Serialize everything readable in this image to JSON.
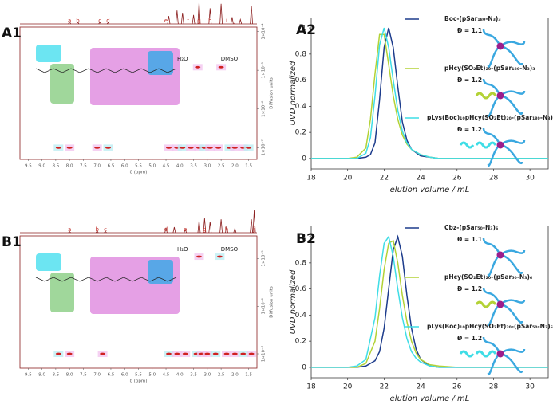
{
  "chart_data": [
    {
      "type": "dosy",
      "panel": "A1",
      "xlabel": "δ (ppm)",
      "ylabel": "Diffusion units",
      "xlim": [
        9.8,
        1.2
      ],
      "xticks": [
        9.5,
        {
          "value": 9,
          "label": "9.0"
        },
        8.5,
        {
          "value": 8,
          "label": "8.0"
        },
        7.5,
        {
          "value": 7,
          "label": "7.0"
        },
        6.5,
        {
          "value": 6,
          "label": "6.0"
        },
        5.5,
        {
          "value": 5,
          "label": "5.0"
        },
        4.5,
        {
          "value": 4,
          "label": "4.0"
        },
        3.5,
        {
          "value": 3,
          "label": "3.0"
        },
        2.5,
        {
          "value": 2,
          "label": "2.0"
        },
        1.5
      ],
      "log_y": true,
      "ylim": [
        5e-08,
        0.00013
      ],
      "yticks": [
        {
          "value": 0.0001,
          "label": "1×10⁻⁴"
        },
        {
          "value": 1e-05,
          "label": "1×10⁻⁵"
        },
        {
          "value": 1e-06,
          "label": "1×10⁻⁶"
        },
        {
          "value": 1e-07,
          "label": "1×10⁻⁷"
        }
      ],
      "peak_labels": [
        {
          "label": "a",
          "x": 8.0
        },
        {
          "label": "b",
          "x": 7.7
        },
        {
          "label": "c",
          "x": 6.9
        },
        {
          "label": "d",
          "x": 6.6
        },
        {
          "label": "e",
          "x": 4.5
        },
        {
          "label": "f",
          "x": 3.7
        },
        {
          "label": "g",
          "x": 3.3
        },
        {
          "label": "h",
          "x": 2.9
        },
        {
          "label": "i",
          "x": 2.3
        },
        {
          "label": "j",
          "x": 2.0
        }
      ],
      "spectrum": {
        "x": [
          8.0,
          7.7,
          6.9,
          6.6,
          4.4,
          4.1,
          3.9,
          3.5,
          3.3,
          2.9,
          2.5,
          2.1,
          1.8,
          1.4
        ],
        "y": [
          0.1,
          0.08,
          0.08,
          0.06,
          0.35,
          0.6,
          0.5,
          0.4,
          1.0,
          0.7,
          0.9,
          0.3,
          0.2,
          0.8
        ]
      },
      "spots": {
        "x": [
          8.4,
          8.0,
          7.0,
          6.6,
          4.4,
          4.1,
          3.9,
          3.6,
          3.3,
          3.1,
          2.9,
          2.6,
          2.2,
          2.0,
          1.7,
          1.5,
          3.35,
          2.5
        ],
        "y": [
          1e-07,
          1e-07,
          1e-07,
          1e-07,
          1e-07,
          1e-07,
          1e-07,
          1e-07,
          1e-07,
          1e-07,
          1e-07,
          1e-07,
          1e-07,
          1e-07,
          1e-07,
          1e-07,
          1.2e-05,
          1.2e-05
        ]
      },
      "annotations": [
        {
          "text": "H₂O",
          "x": 3.9,
          "y": 1.4e-05
        },
        {
          "text": "DMSO",
          "x": 2.2,
          "y": 1.4e-05
        }
      ]
    },
    {
      "type": "line",
      "panel": "A2",
      "xlabel": "elution volume / mL",
      "ylabel": "UVD normalized",
      "xlim": [
        18,
        31
      ],
      "xticks": [
        18,
        20,
        22,
        24,
        26,
        28,
        30
      ],
      "ylim": [
        -0.08,
        1.08
      ],
      "yticks": [
        0,
        0.2,
        0.4,
        0.6,
        0.8,
        1
      ],
      "x": [
        18,
        20,
        20.5,
        21,
        21.25,
        21.5,
        21.75,
        22,
        22.25,
        22.5,
        22.75,
        23,
        23.25,
        23.5,
        24,
        24.5,
        25,
        26,
        31
      ],
      "series": [
        {
          "name": "Boc-(pSar₁₈₀-N₃)₃",
          "dispersity_label": "Đ = 1.1",
          "color": "#1d3c8c",
          "values": [
            0,
            0,
            0,
            0.01,
            0.03,
            0.12,
            0.45,
            0.85,
            1.0,
            0.85,
            0.55,
            0.28,
            0.14,
            0.07,
            0.02,
            0.01,
            0,
            0,
            0
          ]
        },
        {
          "name": "pHcy(SO₂Et)₂₀-(pSar₁₈₀-N₃)₃",
          "dispersity_label": "Đ = 1.2",
          "color": "#b3d236",
          "values": [
            0,
            0,
            0.01,
            0.08,
            0.3,
            0.65,
            0.95,
            0.95,
            0.72,
            0.48,
            0.3,
            0.18,
            0.11,
            0.07,
            0.03,
            0.01,
            0,
            0,
            0
          ]
        },
        {
          "name": "pLys(Boc)₁₀pHcy(SO₂Et)₂₀-(pSar₁₈₀-N₃)₃",
          "dispersity_label": "Đ = 1.2",
          "color": "#3fdde6",
          "values": [
            0,
            0,
            0,
            0.04,
            0.16,
            0.48,
            0.87,
            1.0,
            0.85,
            0.6,
            0.37,
            0.21,
            0.12,
            0.07,
            0.03,
            0.01,
            0,
            0,
            0
          ]
        }
      ]
    },
    {
      "type": "dosy",
      "panel": "B1",
      "xlabel": "δ (ppm)",
      "ylabel": "Diffusion units",
      "xlim": [
        9.8,
        1.2
      ],
      "xticks": [
        9.5,
        {
          "value": 9,
          "label": "9.0"
        },
        8.5,
        {
          "value": 8,
          "label": "8.0"
        },
        7.5,
        {
          "value": 7,
          "label": "7.0"
        },
        6.5,
        {
          "value": 6,
          "label": "6.0"
        },
        5.5,
        {
          "value": 5,
          "label": "5.0"
        },
        4.5,
        {
          "value": 4,
          "label": "4.0"
        },
        3.5,
        {
          "value": 3,
          "label": "3.0"
        },
        2.5,
        {
          "value": 2,
          "label": "2.0"
        },
        1.5
      ],
      "log_y": true,
      "ylim": [
        5e-08,
        3e-05
      ],
      "yticks": [
        {
          "value": 1e-05,
          "label": "1×10⁻⁵"
        },
        {
          "value": 1e-06,
          "label": "1×10⁻⁶"
        },
        {
          "value": 1e-07,
          "label": "1×10⁻⁷"
        }
      ],
      "peak_labels": [
        {
          "label": "a",
          "x": 8.0
        },
        {
          "label": "b",
          "x": 7.0
        },
        {
          "label": "c",
          "x": 6.7
        },
        {
          "label": "d",
          "x": 4.5
        },
        {
          "label": "e",
          "x": 3.8
        },
        {
          "label": "f",
          "x": 3.3
        },
        {
          "label": "g",
          "x": 3.1
        },
        {
          "label": "h",
          "x": 2.3
        },
        {
          "label": "i",
          "x": 2.0
        },
        {
          "label": "j",
          "x": 1.3
        }
      ],
      "spectrum": {
        "x": [
          8.0,
          7.0,
          6.7,
          4.5,
          4.2,
          3.8,
          3.3,
          3.1,
          2.9,
          2.5,
          2.3,
          2.0,
          1.4,
          1.3
        ],
        "y": [
          0.05,
          0.08,
          0.06,
          0.2,
          0.25,
          0.15,
          0.55,
          0.65,
          0.5,
          0.6,
          0.3,
          0.2,
          0.6,
          1.0
        ]
      },
      "spots": {
        "x": [
          8.4,
          8.0,
          6.8,
          4.4,
          4.1,
          3.8,
          3.4,
          3.2,
          3.0,
          2.7,
          2.3,
          2.0,
          1.7,
          1.4,
          3.3,
          2.55
        ],
        "y": [
          1e-07,
          1e-07,
          1e-07,
          1e-07,
          1e-07,
          1e-07,
          1e-07,
          1e-07,
          1e-07,
          1e-07,
          1e-07,
          1e-07,
          1e-07,
          1e-07,
          1.1e-05,
          1.1e-05
        ]
      },
      "annotations": [
        {
          "text": "H₂O",
          "x": 3.9,
          "y": 1.2e-05
        },
        {
          "text": "DMSO",
          "x": 2.2,
          "y": 1.2e-05
        }
      ]
    },
    {
      "type": "line",
      "panel": "B2",
      "xlabel": "elution volume / mL",
      "ylabel": "UVD normalized",
      "xlim": [
        18,
        31
      ],
      "xticks": [
        18,
        20,
        22,
        24,
        26,
        28,
        30
      ],
      "ylim": [
        -0.08,
        1.08
      ],
      "yticks": [
        0,
        0.2,
        0.4,
        0.6,
        0.8,
        1
      ],
      "x": [
        18,
        20,
        20.5,
        21,
        21.5,
        21.75,
        22,
        22.25,
        22.5,
        22.75,
        23,
        23.25,
        23.5,
        23.75,
        24,
        24.5,
        25,
        26,
        31
      ],
      "series": [
        {
          "name": "Cbz-(pSar₅₀-N₃)₆",
          "dispersity_label": "Đ = 1.1",
          "color": "#1d3c8c",
          "values": [
            0,
            0,
            0,
            0.01,
            0.05,
            0.12,
            0.3,
            0.6,
            0.9,
            1.0,
            0.85,
            0.55,
            0.3,
            0.14,
            0.06,
            0.01,
            0,
            0,
            0
          ]
        },
        {
          "name": "pHcy(SO₂Et)₂₀-(pSar₅₀-N₃)₆",
          "dispersity_label": "Đ = 1.2",
          "color": "#b3d236",
          "values": [
            0,
            0,
            0,
            0.03,
            0.2,
            0.45,
            0.75,
            0.95,
            0.97,
            0.8,
            0.55,
            0.35,
            0.2,
            0.11,
            0.06,
            0.02,
            0.01,
            0,
            0
          ]
        },
        {
          "name": "pLys(Boc)₁₀pHcy(SO₂Et)₂₀-(pSar₅₀-N₃)₆",
          "dispersity_label": "Đ = 1.2",
          "color": "#3fdde6",
          "values": [
            0,
            0,
            0.01,
            0.06,
            0.38,
            0.7,
            0.95,
            1.0,
            0.85,
            0.6,
            0.38,
            0.22,
            0.12,
            0.07,
            0.04,
            0.01,
            0,
            0,
            0
          ]
        }
      ]
    }
  ]
}
